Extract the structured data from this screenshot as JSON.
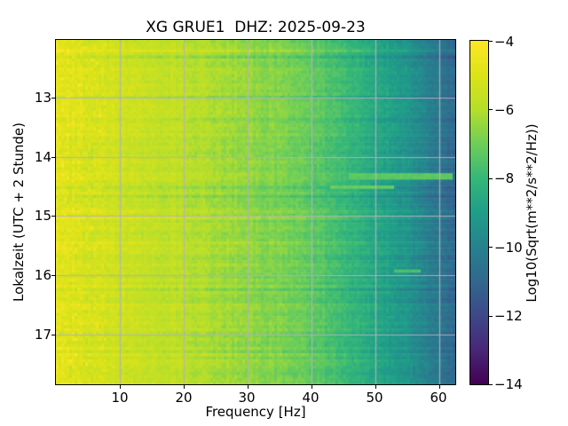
{
  "figure": {
    "title": "XG GRUE1  DHZ: 2025-09-23",
    "background_color": "#ffffff"
  },
  "chart_data": {
    "type": "heatmap",
    "subtype": "spectrogram",
    "title": "XG GRUE1  DHZ: 2025-09-23",
    "xlabel": "Frequency [Hz]",
    "ylabel": "Lokalzeit (UTC + 2 Stunde)",
    "xlim": [
      0,
      62.5
    ],
    "ylim": [
      12.03,
      17.84
    ],
    "y_axis_inverted": true,
    "x_ticks": [
      10,
      20,
      30,
      40,
      50,
      60
    ],
    "x_tick_labels": [
      "10",
      "20",
      "30",
      "40",
      "50",
      "60"
    ],
    "y_ticks": [
      13,
      14,
      15,
      16,
      17
    ],
    "y_tick_labels": [
      "13",
      "14",
      "15",
      "16",
      "17"
    ],
    "grid": true,
    "grid_color": "#b2b2b8",
    "colormap": "viridis",
    "colormap_stops": [
      {
        "t": 0.0,
        "color": "#440154"
      },
      {
        "t": 0.1,
        "color": "#482878"
      },
      {
        "t": 0.2,
        "color": "#3e4989"
      },
      {
        "t": 0.3,
        "color": "#31688e"
      },
      {
        "t": 0.4,
        "color": "#26828e"
      },
      {
        "t": 0.5,
        "color": "#1f9e89"
      },
      {
        "t": 0.6,
        "color": "#35b779"
      },
      {
        "t": 0.7,
        "color": "#6ece58"
      },
      {
        "t": 0.8,
        "color": "#b5de2b"
      },
      {
        "t": 0.9,
        "color": "#dde318"
      },
      {
        "t": 1.0,
        "color": "#fde725"
      }
    ],
    "colorbar": {
      "label": "Log10(Sqrt(m**2/s**2/Hz))",
      "vmin": -14,
      "vmax": -4,
      "ticks": [
        -4,
        -6,
        -8,
        -10,
        -12,
        -14
      ],
      "tick_labels": [
        "−4",
        "−6",
        "−8",
        "−10",
        "−12",
        "−14"
      ]
    },
    "freq_profile": {
      "comment": "approximate mean Log10 level vs frequency read from the image colors",
      "hz": [
        0,
        1,
        3,
        6,
        10,
        15,
        20,
        25,
        30,
        35,
        40,
        45,
        50,
        54,
        57,
        60,
        62.5
      ],
      "level": [
        -4.7,
        -4.85,
        -5.0,
        -5.2,
        -5.4,
        -5.6,
        -5.8,
        -6.2,
        -6.5,
        -6.8,
        -7.2,
        -7.9,
        -8.6,
        -9.2,
        -9.8,
        -10.4,
        -11.0
      ]
    },
    "bright_patches": [
      {
        "time": 14.33,
        "hz": [
          46,
          62
        ],
        "level": -7.3,
        "half_hours": 0.045
      },
      {
        "time": 14.52,
        "hz": [
          43,
          53
        ],
        "level": -7.1,
        "half_hours": 0.04
      },
      {
        "time": 15.95,
        "hz": [
          53,
          57
        ],
        "level": -7.6,
        "half_hours": 0.03
      }
    ],
    "texture": {
      "row_streak_amplitude": 0.45,
      "cell_noise_amplitude": 0.5,
      "low_freq_extra_noise_below_hz": 8,
      "seed": 987654321
    }
  }
}
